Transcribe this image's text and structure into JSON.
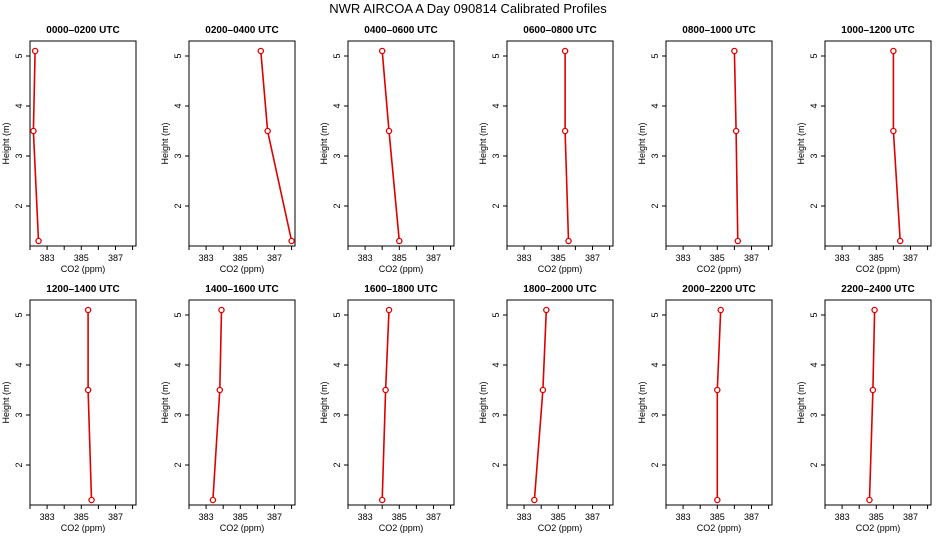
{
  "title": "NWR AIRCOA A  Day 090814  Calibrated Profiles",
  "colors": {
    "profile_line": "#dd0000",
    "profile_marker": "#dd0000",
    "axis": "#000000"
  },
  "chart_data": [
    {
      "type": "line",
      "title": "0000–0200 UTC",
      "xlabel": "CO2 (ppm)",
      "ylabel": "Height (m)",
      "xlim": [
        382,
        388.2
      ],
      "ylim": [
        1.2,
        5.3
      ],
      "xticks": [
        383,
        385,
        387
      ],
      "yticks": [
        2,
        3,
        4,
        5
      ],
      "series": [
        {
          "x": [
            382.3,
            382.2,
            382.5
          ],
          "y": [
            5.1,
            3.5,
            1.3
          ]
        }
      ]
    },
    {
      "type": "line",
      "title": "0200–0400 UTC",
      "xlabel": "CO2 (ppm)",
      "ylabel": "Height (m)",
      "xlim": [
        382,
        388.2
      ],
      "ylim": [
        1.2,
        5.3
      ],
      "xticks": [
        383,
        385,
        387
      ],
      "yticks": [
        2,
        3,
        4,
        5
      ],
      "series": [
        {
          "x": [
            386.2,
            386.6,
            388.0
          ],
          "y": [
            5.1,
            3.5,
            1.3
          ]
        }
      ]
    },
    {
      "type": "line",
      "title": "0400–0600 UTC",
      "xlabel": "CO2 (ppm)",
      "ylabel": "Height (m)",
      "xlim": [
        382,
        388.2
      ],
      "ylim": [
        1.2,
        5.3
      ],
      "xticks": [
        383,
        385,
        387
      ],
      "yticks": [
        2,
        3,
        4,
        5
      ],
      "series": [
        {
          "x": [
            384.0,
            384.4,
            385.0
          ],
          "y": [
            5.1,
            3.5,
            1.3
          ]
        }
      ]
    },
    {
      "type": "line",
      "title": "0600–0800 UTC",
      "xlabel": "CO2 (ppm)",
      "ylabel": "Height (m)",
      "xlim": [
        382,
        388.2
      ],
      "ylim": [
        1.2,
        5.3
      ],
      "xticks": [
        383,
        385,
        387
      ],
      "yticks": [
        2,
        3,
        4,
        5
      ],
      "series": [
        {
          "x": [
            385.4,
            385.4,
            385.6
          ],
          "y": [
            5.1,
            3.5,
            1.3
          ]
        }
      ]
    },
    {
      "type": "line",
      "title": "0800–1000 UTC",
      "xlabel": "CO2 (ppm)",
      "ylabel": "Height (m)",
      "xlim": [
        382,
        388.2
      ],
      "ylim": [
        1.2,
        5.3
      ],
      "xticks": [
        383,
        385,
        387
      ],
      "yticks": [
        2,
        3,
        4,
        5
      ],
      "series": [
        {
          "x": [
            386.0,
            386.1,
            386.2
          ],
          "y": [
            5.1,
            3.5,
            1.3
          ]
        }
      ]
    },
    {
      "type": "line",
      "title": "1000–1200 UTC",
      "xlabel": "CO2 (ppm)",
      "ylabel": "Height (m)",
      "xlim": [
        382,
        388.2
      ],
      "ylim": [
        1.2,
        5.3
      ],
      "xticks": [
        383,
        385,
        387
      ],
      "yticks": [
        2,
        3,
        4,
        5
      ],
      "series": [
        {
          "x": [
            386.0,
            386.0,
            386.4
          ],
          "y": [
            5.1,
            3.5,
            1.3
          ]
        }
      ]
    },
    {
      "type": "line",
      "title": "1200–1400 UTC",
      "xlabel": "CO2 (ppm)",
      "ylabel": "Height (m)",
      "xlim": [
        382,
        388.2
      ],
      "ylim": [
        1.2,
        5.3
      ],
      "xticks": [
        383,
        385,
        387
      ],
      "yticks": [
        2,
        3,
        4,
        5
      ],
      "series": [
        {
          "x": [
            385.4,
            385.4,
            385.6
          ],
          "y": [
            5.1,
            3.5,
            1.3
          ]
        }
      ]
    },
    {
      "type": "line",
      "title": "1400–1600 UTC",
      "xlabel": "CO2 (ppm)",
      "ylabel": "Height (m)",
      "xlim": [
        382,
        388.2
      ],
      "ylim": [
        1.2,
        5.3
      ],
      "xticks": [
        383,
        385,
        387
      ],
      "yticks": [
        2,
        3,
        4,
        5
      ],
      "series": [
        {
          "x": [
            383.9,
            383.8,
            383.4
          ],
          "y": [
            5.1,
            3.5,
            1.3
          ]
        }
      ]
    },
    {
      "type": "line",
      "title": "1600–1800 UTC",
      "xlabel": "CO2 (ppm)",
      "ylabel": "Height (m)",
      "xlim": [
        382,
        388.2
      ],
      "ylim": [
        1.2,
        5.3
      ],
      "xticks": [
        383,
        385,
        387
      ],
      "yticks": [
        2,
        3,
        4,
        5
      ],
      "series": [
        {
          "x": [
            384.4,
            384.2,
            384.0
          ],
          "y": [
            5.1,
            3.5,
            1.3
          ]
        }
      ]
    },
    {
      "type": "line",
      "title": "1800–2000 UTC",
      "xlabel": "CO2 (ppm)",
      "ylabel": "Height (m)",
      "xlim": [
        382,
        388.2
      ],
      "ylim": [
        1.2,
        5.3
      ],
      "xticks": [
        383,
        385,
        387
      ],
      "yticks": [
        2,
        3,
        4,
        5
      ],
      "series": [
        {
          "x": [
            384.3,
            384.1,
            383.6
          ],
          "y": [
            5.1,
            3.5,
            1.3
          ]
        }
      ]
    },
    {
      "type": "line",
      "title": "2000–2200 UTC",
      "xlabel": "CO2 (ppm)",
      "ylabel": "Height (m)",
      "xlim": [
        382,
        388.2
      ],
      "ylim": [
        1.2,
        5.3
      ],
      "xticks": [
        383,
        385,
        387
      ],
      "yticks": [
        2,
        3,
        4,
        5
      ],
      "series": [
        {
          "x": [
            385.2,
            385.0,
            385.0
          ],
          "y": [
            5.1,
            3.5,
            1.3
          ]
        }
      ]
    },
    {
      "type": "line",
      "title": "2200–2400 UTC",
      "xlabel": "CO2 (ppm)",
      "ylabel": "Height (m)",
      "xlim": [
        382,
        388.2
      ],
      "ylim": [
        1.2,
        5.3
      ],
      "xticks": [
        383,
        385,
        387
      ],
      "yticks": [
        2,
        3,
        4,
        5
      ],
      "series": [
        {
          "x": [
            384.9,
            384.8,
            384.6
          ],
          "y": [
            5.1,
            3.5,
            1.3
          ]
        }
      ]
    }
  ]
}
